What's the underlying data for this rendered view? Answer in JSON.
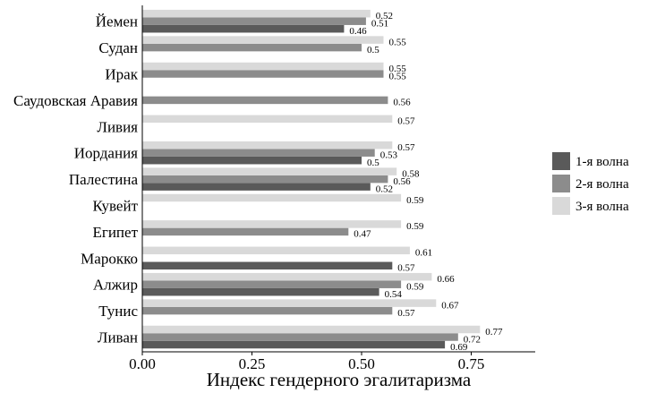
{
  "chart_data": {
    "type": "bar",
    "orientation": "horizontal",
    "categories": [
      "Йемен",
      "Судан",
      "Ирак",
      "Саудовская Аравия",
      "Ливия",
      "Иордания",
      "Палестина",
      "Кувейт",
      "Египет",
      "Марокко",
      "Алжир",
      "Тунис",
      "Ливан"
    ],
    "series": [
      {
        "name": "1-я волна",
        "color": "#5a5a5a",
        "values": [
          0.46,
          null,
          null,
          null,
          null,
          0.5,
          0.52,
          null,
          null,
          0.57,
          0.54,
          null,
          0.69
        ]
      },
      {
        "name": "2-я волна",
        "color": "#8c8c8c",
        "values": [
          0.51,
          0.5,
          0.55,
          0.56,
          null,
          0.53,
          0.56,
          null,
          0.47,
          null,
          0.59,
          0.57,
          0.72
        ]
      },
      {
        "name": "3-я волна",
        "color": "#d9d9d9",
        "values": [
          0.52,
          0.55,
          0.55,
          null,
          0.57,
          0.57,
          0.58,
          0.59,
          0.59,
          0.61,
          0.66,
          0.67,
          0.77
        ]
      }
    ],
    "xlabel": "Индекс гендерного эгалитаризма",
    "ylabel": "",
    "xlim": [
      0,
      0.9
    ],
    "xticks": [
      0.0,
      0.25,
      0.5,
      0.75
    ],
    "xtick_labels": [
      "0.00",
      "0.25",
      "0.50",
      "0.75"
    ],
    "grid": false,
    "legend_position": "right"
  }
}
